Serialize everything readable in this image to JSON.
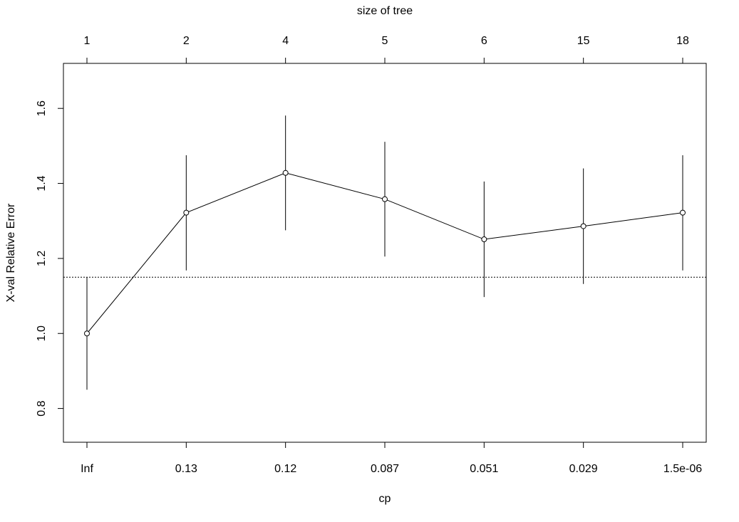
{
  "chart_data": {
    "type": "line",
    "title": "",
    "xlabel": "cp",
    "ylabel": "X-val Relative Error",
    "top_axis_label": "size of tree",
    "x_tick_labels": [
      "Inf",
      "0.13",
      "0.12",
      "0.087",
      "0.051",
      "0.029",
      "1.5e-06"
    ],
    "top_tick_labels": [
      "1",
      "2",
      "4",
      "5",
      "6",
      "15",
      "18"
    ],
    "y_ticks": [
      "0.8",
      "1.0",
      "1.2",
      "1.4",
      "1.6"
    ],
    "ylim": [
      0.71,
      1.72
    ],
    "grid": false,
    "series": [
      {
        "values": [
          1.0,
          1.322,
          1.428,
          1.358,
          1.251,
          1.286,
          1.322
        ],
        "err_low": [
          0.85,
          1.168,
          1.275,
          1.205,
          1.097,
          1.132,
          1.168
        ],
        "err_high": [
          1.15,
          1.475,
          1.581,
          1.511,
          1.405,
          1.44,
          1.475
        ]
      }
    ],
    "reference_line": 1.15,
    "colors": {
      "line": "#000000",
      "background": "#ffffff"
    }
  }
}
